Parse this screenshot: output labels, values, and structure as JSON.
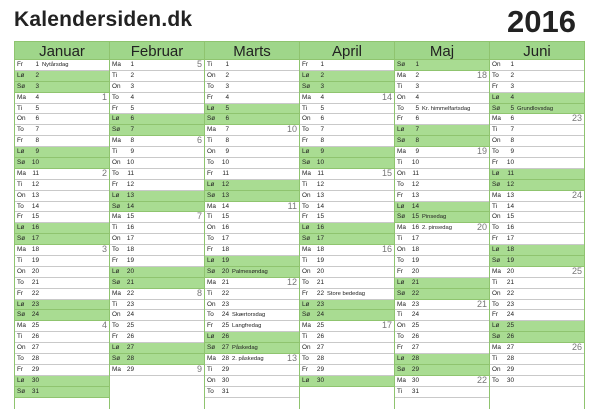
{
  "site": {
    "title": "Kalendersiden.dk"
  },
  "year": "2016",
  "months": [
    {
      "name": "Januar",
      "start": 4,
      "days": 31,
      "holidays": {
        "1": "Nytårsdag"
      },
      "weeks": {
        "4": "1",
        "11": "2",
        "18": "3",
        "25": "4"
      }
    },
    {
      "name": "Februar",
      "start": 0,
      "days": 29,
      "holidays": {},
      "weeks": {
        "1": "5",
        "8": "6",
        "15": "7",
        "22": "8",
        "29": "9"
      }
    },
    {
      "name": "Marts",
      "start": 1,
      "days": 31,
      "holidays": {
        "20": "Palmesøndag",
        "24": "Skærtorsdag",
        "25": "Langfredag",
        "27": "Påskedag",
        "28": "2. påskedag"
      },
      "weeks": {
        "7": "10",
        "14": "11",
        "21": "12",
        "28": "13"
      }
    },
    {
      "name": "April",
      "start": 4,
      "days": 30,
      "holidays": {
        "22": "Store bededag"
      },
      "weeks": {
        "4": "14",
        "11": "15",
        "18": "16",
        "25": "17"
      }
    },
    {
      "name": "Maj",
      "start": 6,
      "days": 31,
      "holidays": {
        "5": "Kr. himmelfartsdag",
        "15": "Pinsedag",
        "16": "2. pinsedag"
      },
      "weeks": {
        "2": "18",
        "9": "19",
        "16": "20",
        "23": "21",
        "30": "22"
      }
    },
    {
      "name": "Juni",
      "start": 2,
      "days": 30,
      "holidays": {
        "5": "Grundlovsdag"
      },
      "weeks": {
        "6": "23",
        "13": "24",
        "20": "25",
        "27": "26"
      }
    }
  ],
  "weekday_abbr": [
    "Ma",
    "Ti",
    "On",
    "To",
    "Fr",
    "Lø",
    "Sø"
  ],
  "colors": {
    "header": "#9fd68a",
    "weekend": "#a9dc92",
    "grid": "#8fc46f"
  }
}
